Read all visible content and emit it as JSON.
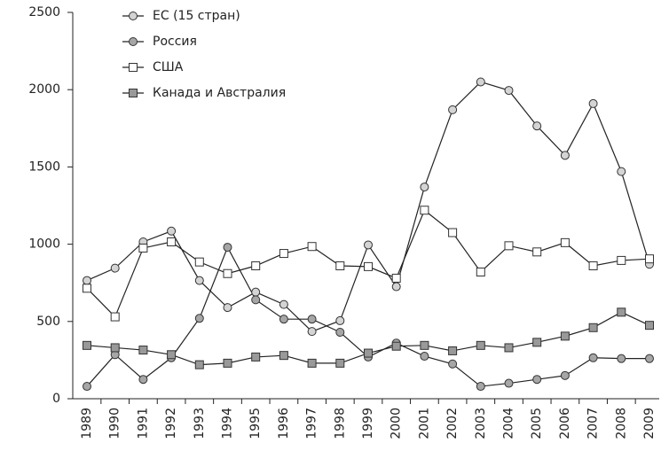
{
  "chart_data": {
    "type": "line",
    "categories": [
      "1989",
      "1990",
      "1991",
      "1992",
      "1993",
      "1994",
      "1995",
      "1996",
      "1997",
      "1998",
      "1999",
      "2000",
      "2001",
      "2002",
      "2003",
      "2004",
      "2005",
      "2006",
      "2007",
      "2008",
      "2009"
    ],
    "series": [
      {
        "name": "ЕС (15 стран)",
        "color": "#d4d4d4",
        "marker": "circle",
        "values": [
          765,
          845,
          1015,
          1085,
          765,
          590,
          690,
          610,
          435,
          505,
          995,
          725,
          1370,
          1870,
          2050,
          1995,
          1765,
          1575,
          1910,
          1470,
          870
        ]
      },
      {
        "name": "Россия",
        "color": "#a6a6a6",
        "marker": "circle",
        "values": [
          80,
          285,
          125,
          265,
          520,
          980,
          640,
          515,
          515,
          430,
          270,
          360,
          275,
          225,
          80,
          100,
          125,
          150,
          265,
          260,
          260
        ]
      },
      {
        "name": "США",
        "color": "#ffffff",
        "marker": "square",
        "values": [
          715,
          530,
          975,
          1015,
          885,
          810,
          860,
          940,
          985,
          860,
          855,
          780,
          1220,
          1075,
          820,
          990,
          950,
          1010,
          860,
          895,
          905
        ]
      },
      {
        "name": "Канада и Австралия",
        "color": "#999999",
        "marker": "square",
        "values": [
          345,
          330,
          315,
          285,
          220,
          230,
          270,
          280,
          230,
          230,
          295,
          340,
          345,
          310,
          345,
          330,
          365,
          405,
          460,
          560,
          475
        ]
      }
    ],
    "ylim": [
      0,
      2500
    ],
    "yticks": [
      0,
      500,
      1000,
      1500,
      2000,
      2500
    ]
  }
}
